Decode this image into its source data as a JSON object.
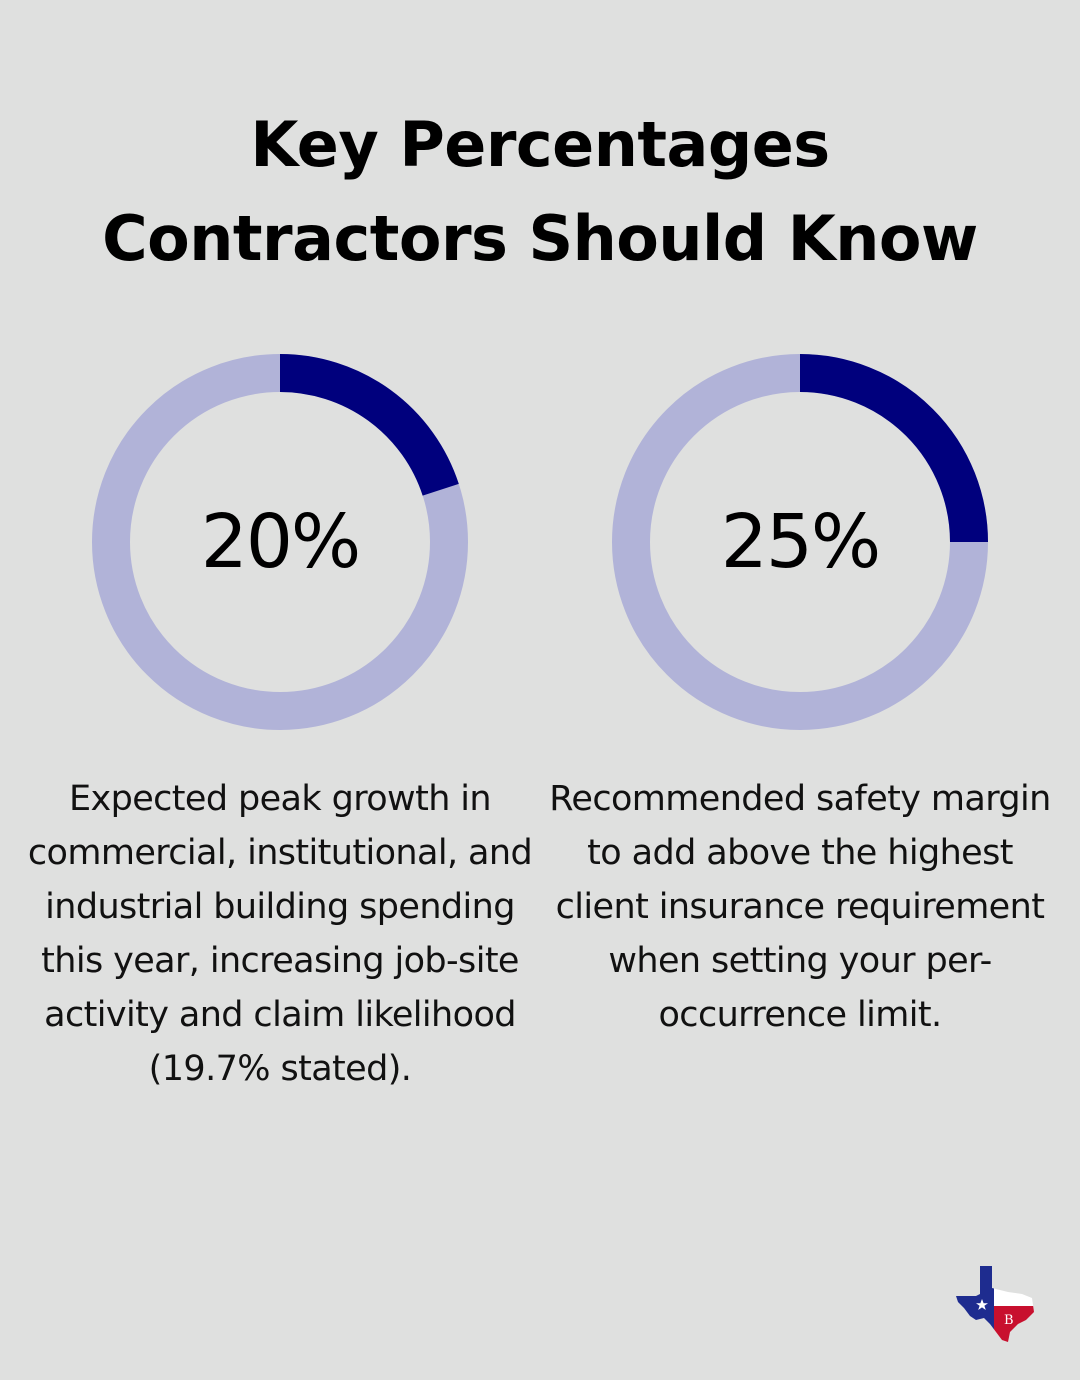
{
  "title_lines": [
    "Key Percentages",
    "Contractors Should Know"
  ],
  "colors": {
    "background": "#dfe0df",
    "ring_track": "#b1b3d8",
    "ring_fill": "#00007d",
    "logo_blue": "#1e2c8f",
    "logo_red": "#c8102e"
  },
  "chart_data": [
    {
      "type": "donut",
      "value": 20,
      "max": 100,
      "label": "20%",
      "description": "Expected peak growth in commercial, institutional, and industrial building spending this year, increasing job-site activity and claim likelihood (19.7% stated)."
    },
    {
      "type": "donut",
      "value": 25,
      "max": 100,
      "label": "25%",
      "description": "Recommended safety margin to add above the highest client insurance requirement when setting your per-occurrence limit."
    }
  ],
  "logo": {
    "icon": "texas-state-logo-icon"
  }
}
